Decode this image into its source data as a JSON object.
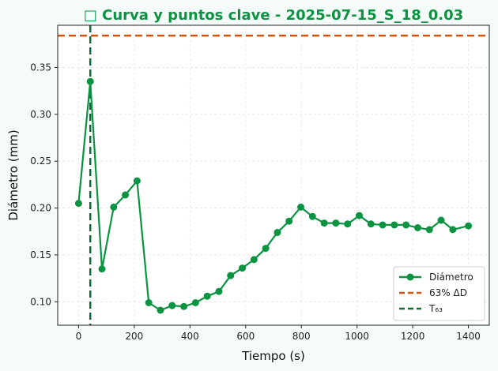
{
  "chart_data": {
    "type": "line",
    "title": "□ Curva y puntos clave - 2025-07-15_S_18_0.03",
    "xlabel": "Tiempo (s)",
    "ylabel": "Diámetro (mm)",
    "xlim": [
      -75,
      1475
    ],
    "ylim": [
      0.075,
      0.395
    ],
    "xticks": [
      0,
      200,
      400,
      600,
      800,
      1000,
      1200,
      1400
    ],
    "yticks": [
      0.1,
      0.15,
      0.2,
      0.25,
      0.3,
      0.35
    ],
    "grid": true,
    "legend_position": "lower-right",
    "colors": {
      "series": "#0a9341",
      "ref_line": "#d2540a",
      "t63_line": "#0a6e36",
      "title": "#0a9341"
    },
    "series": [
      {
        "name": "Diámetro",
        "x": [
          0,
          42,
          84,
          126,
          168,
          210,
          252,
          294,
          336,
          378,
          420,
          462,
          504,
          546,
          588,
          630,
          672,
          714,
          756,
          798,
          840,
          882,
          924,
          966,
          1008,
          1050,
          1092,
          1134,
          1176,
          1218,
          1260,
          1302,
          1344,
          1400
        ],
        "y": [
          0.205,
          0.335,
          0.135,
          0.201,
          0.214,
          0.229,
          0.099,
          0.091,
          0.096,
          0.095,
          0.099,
          0.106,
          0.111,
          0.128,
          0.136,
          0.145,
          0.157,
          0.174,
          0.186,
          0.201,
          0.191,
          0.184,
          0.184,
          0.183,
          0.192,
          0.183,
          0.182,
          0.182,
          0.182,
          0.179,
          0.177,
          0.187,
          0.177,
          0.181
        ]
      }
    ],
    "reference_lines": [
      {
        "name": "63% ΔD",
        "orientation": "horizontal",
        "value": 0.384
      },
      {
        "name": "T₆₃",
        "orientation": "vertical",
        "value": 42
      }
    ]
  }
}
